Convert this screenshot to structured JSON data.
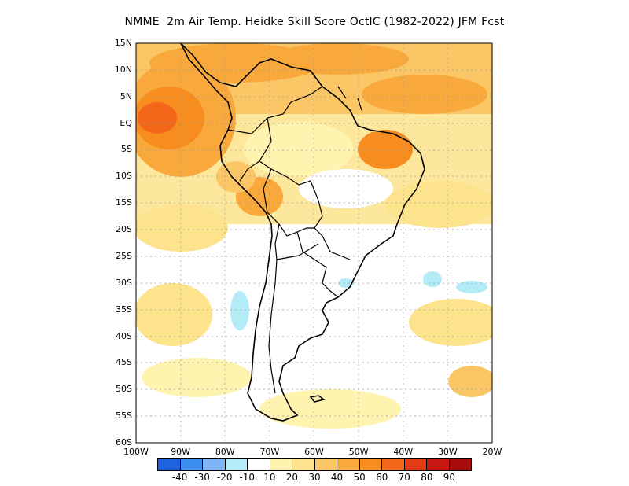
{
  "title": "NMME  2m Air Temp. Heidke Skill Score OctIC (1982-2022) JFM Fcst",
  "lat_labels": [
    "15N",
    "10N",
    "5N",
    "EQ",
    "5S",
    "10S",
    "15S",
    "20S",
    "25S",
    "30S",
    "35S",
    "40S",
    "45S",
    "50S",
    "55S",
    "60S"
  ],
  "lon_labels": [
    "100W",
    "90W",
    "80W",
    "70W",
    "60W",
    "50W",
    "40W",
    "30W",
    "20W"
  ],
  "colorbar": {
    "colors": [
      "#1f62e0",
      "#3c8ef0",
      "#7db4f5",
      "#b3ecf7",
      "#ffffff",
      "#fff3b0",
      "#fde38c",
      "#fbc766",
      "#f9a93c",
      "#f78c1f",
      "#f4661a",
      "#e23b16",
      "#c81712",
      "#a80b0b"
    ],
    "labels": [
      "-40",
      "-30",
      "-20",
      "-10",
      "10",
      "20",
      "30",
      "40",
      "50",
      "60",
      "70",
      "80",
      "90"
    ]
  }
}
